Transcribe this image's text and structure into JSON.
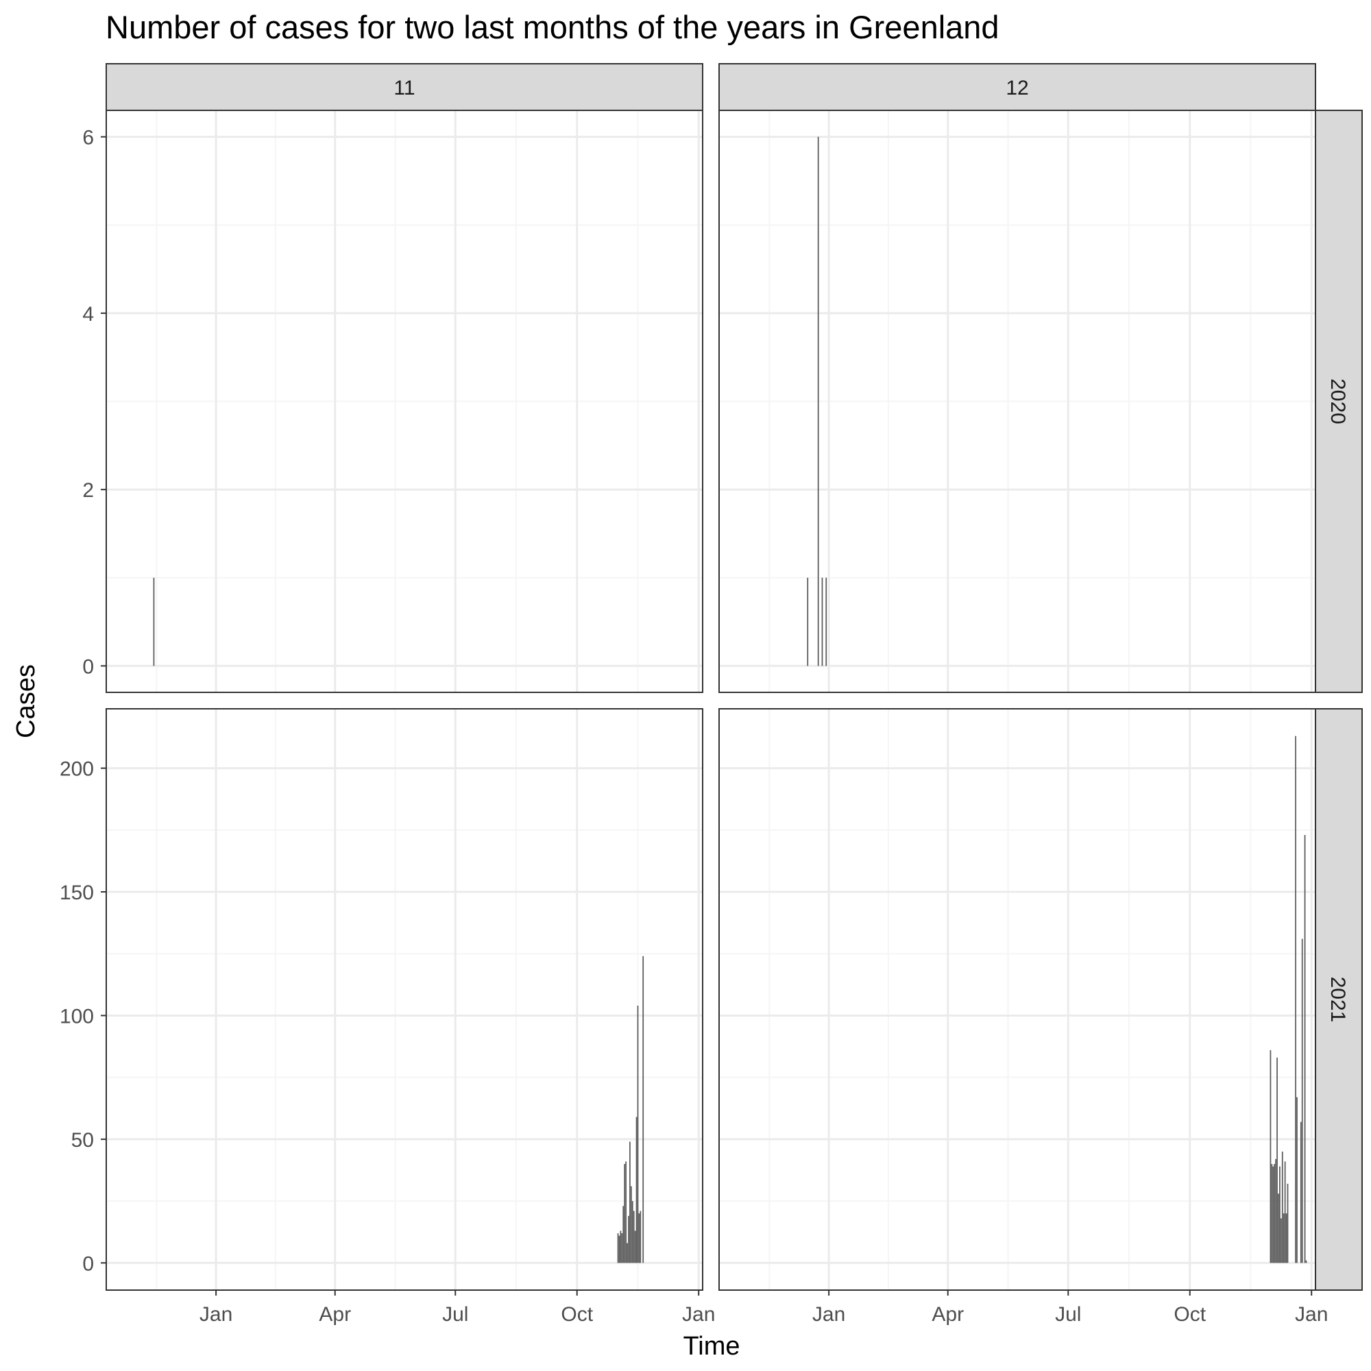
{
  "chart_data": {
    "type": "bar",
    "title": "Number of cases for two last months of the years in Greenland",
    "xlabel": "Time",
    "ylabel": "Cases",
    "x_ticks": [
      "Jan",
      "Apr",
      "Jul",
      "Oct",
      "Jan"
    ],
    "x_tick_dates": [
      "2021-01-01",
      "2021-04-01",
      "2021-07-01",
      "2021-10-01",
      "2022-01-01"
    ],
    "xlim": [
      "2020-10-10",
      "2022-01-04"
    ],
    "grid": true,
    "facet_columns": [
      "11",
      "12"
    ],
    "facet_rows": [
      "2020",
      "2021"
    ],
    "colors": {
      "bar": "#595959",
      "panel_border": "#333333",
      "strip_fill": "#d9d9d9",
      "grid_major": "#ebebeb",
      "grid_minor": "#f5f5f5"
    },
    "rows": [
      {
        "year": "2020",
        "y_ticks": [
          0,
          2,
          4,
          6
        ],
        "ylim": [
          -0.3,
          6.3
        ],
        "panels": [
          {
            "month": "11",
            "points": [
              {
                "x": "2020-11-15",
                "y": 1
              }
            ]
          },
          {
            "month": "12",
            "points": [
              {
                "x": "2020-12-16",
                "y": 1
              },
              {
                "x": "2020-12-24",
                "y": 6
              },
              {
                "x": "2020-12-27",
                "y": 1
              },
              {
                "x": "2020-12-30",
                "y": 1
              }
            ]
          }
        ]
      },
      {
        "year": "2021",
        "y_ticks": [
          0,
          50,
          100,
          150,
          200
        ],
        "ylim": [
          -11,
          224
        ],
        "panels": [
          {
            "month": "11",
            "points": [
              {
                "x": "2021-11-01",
                "y": 12
              },
              {
                "x": "2021-11-02",
                "y": 11
              },
              {
                "x": "2021-11-03",
                "y": 13
              },
              {
                "x": "2021-11-04",
                "y": 12
              },
              {
                "x": "2021-11-05",
                "y": 23
              },
              {
                "x": "2021-11-06",
                "y": 40
              },
              {
                "x": "2021-11-07",
                "y": 41
              },
              {
                "x": "2021-11-08",
                "y": 8
              },
              {
                "x": "2021-11-09",
                "y": 19
              },
              {
                "x": "2021-11-10",
                "y": 49
              },
              {
                "x": "2021-11-11",
                "y": 31
              },
              {
                "x": "2021-11-12",
                "y": 25
              },
              {
                "x": "2021-11-13",
                "y": 21
              },
              {
                "x": "2021-11-14",
                "y": 13
              },
              {
                "x": "2021-11-15",
                "y": 59
              },
              {
                "x": "2021-11-16",
                "y": 104
              },
              {
                "x": "2021-11-17",
                "y": 20
              },
              {
                "x": "2021-11-18",
                "y": 21
              },
              {
                "x": "2021-11-20",
                "y": 124
              }
            ]
          },
          {
            "month": "12",
            "points": [
              {
                "x": "2021-12-01",
                "y": 86
              },
              {
                "x": "2021-12-02",
                "y": 40
              },
              {
                "x": "2021-12-03",
                "y": 39
              },
              {
                "x": "2021-12-04",
                "y": 40
              },
              {
                "x": "2021-12-05",
                "y": 42
              },
              {
                "x": "2021-12-06",
                "y": 83
              },
              {
                "x": "2021-12-07",
                "y": 28
              },
              {
                "x": "2021-12-08",
                "y": 39
              },
              {
                "x": "2021-12-09",
                "y": 18
              },
              {
                "x": "2021-12-10",
                "y": 45
              },
              {
                "x": "2021-12-11",
                "y": 20
              },
              {
                "x": "2021-12-12",
                "y": 41
              },
              {
                "x": "2021-12-13",
                "y": 20
              },
              {
                "x": "2021-12-14",
                "y": 32
              },
              {
                "x": "2021-12-20",
                "y": 213
              },
              {
                "x": "2021-12-21",
                "y": 67
              },
              {
                "x": "2021-12-24",
                "y": 57
              },
              {
                "x": "2021-12-25",
                "y": 131
              },
              {
                "x": "2021-12-27",
                "y": 173
              },
              {
                "x": "2021-12-28",
                "y": 1
              }
            ]
          }
        ]
      }
    ]
  }
}
